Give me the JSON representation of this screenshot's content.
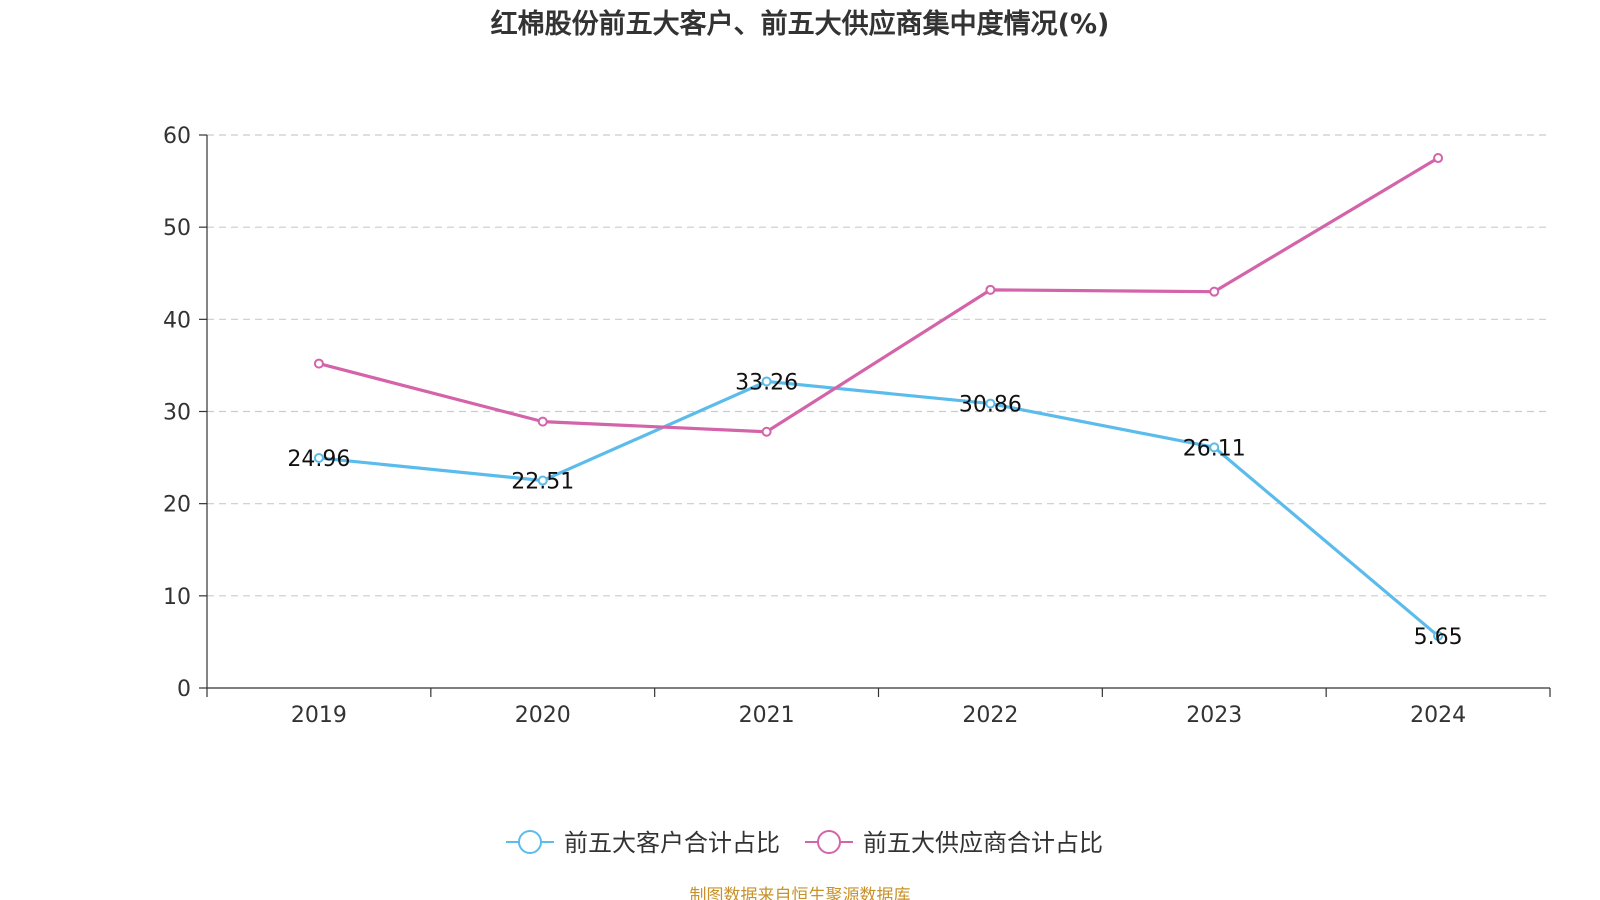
{
  "chart_data": {
    "type": "line",
    "title": "红棉股份前五大客户、前五大供应商集中度情况(%)",
    "categories": [
      "2019",
      "2020",
      "2021",
      "2022",
      "2023",
      "2024"
    ],
    "ylim": [
      0,
      60
    ],
    "yticks": [
      0,
      10,
      20,
      30,
      40,
      50,
      60
    ],
    "ytick_labels": [
      "0",
      "10",
      "20",
      "30",
      "40",
      "50",
      "60"
    ],
    "grid": "dashed-horizontal",
    "legend_position": "bottom-center",
    "series": [
      {
        "name": "前五大客户合计占比",
        "color": "#5bbcec",
        "values": [
          24.96,
          22.51,
          33.26,
          30.86,
          26.11,
          5.65
        ],
        "labels": [
          "24.96",
          "22.51",
          "33.26",
          "30.86",
          "26.11",
          "5.65"
        ],
        "show_labels": true
      },
      {
        "name": "前五大供应商合计占比",
        "color": "#d464aa",
        "values": [
          35.2,
          28.9,
          27.8,
          43.2,
          43.0,
          57.5
        ],
        "show_labels": false
      }
    ],
    "source": "制图数据来自恒生聚源数据库"
  }
}
